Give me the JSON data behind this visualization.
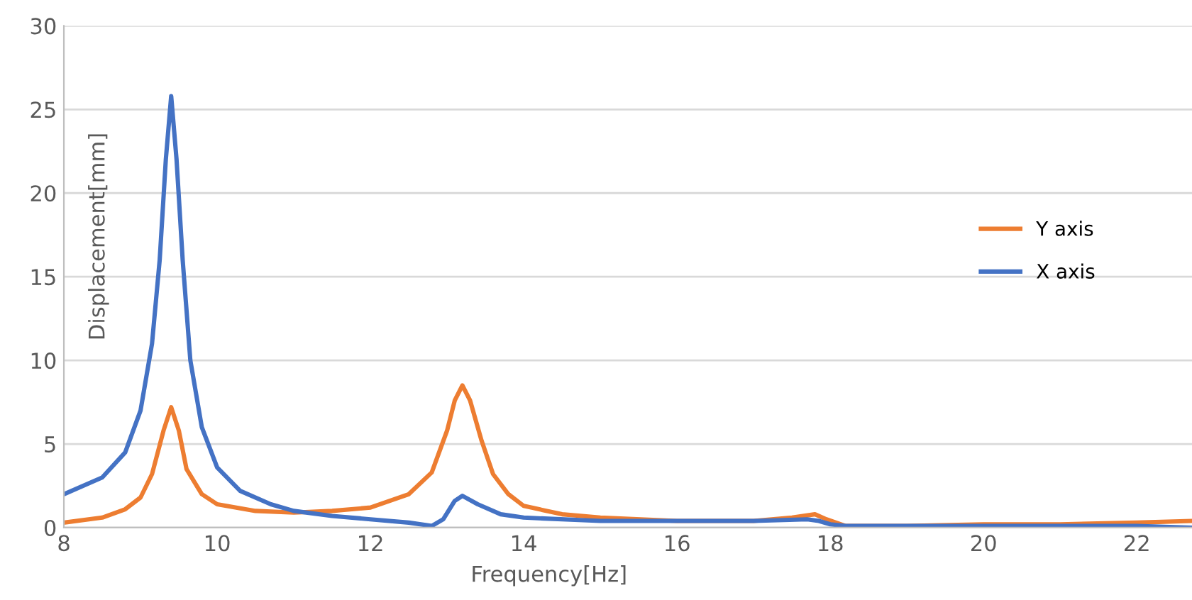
{
  "chart_data": {
    "type": "line",
    "xlabel": "Frequency[Hz]",
    "ylabel": "Displacement[mm]",
    "xlim": [
      8,
      22.72
    ],
    "xticks": [
      8,
      10,
      12,
      14,
      16,
      18,
      20,
      22
    ],
    "ylim": [
      0,
      30
    ],
    "yticks": [
      0,
      5,
      10,
      15,
      20,
      25,
      30
    ],
    "grid": "y",
    "legend": "right",
    "marker": "none",
    "line_style": "solid",
    "series": [
      {
        "name": "Y axis",
        "color": "#ed7d31",
        "x": [
          8,
          8.5,
          8.8,
          9.0,
          9.15,
          9.3,
          9.4,
          9.5,
          9.6,
          9.8,
          10,
          10.5,
          11,
          11.5,
          12,
          12.5,
          12.8,
          13.0,
          13.1,
          13.2,
          13.3,
          13.45,
          13.6,
          13.8,
          14,
          14.5,
          15,
          16,
          17,
          17.5,
          17.8,
          17.95,
          18.2,
          19,
          20,
          21,
          22,
          22.7
        ],
        "values": [
          0.3,
          0.6,
          1.1,
          1.8,
          3.2,
          5.8,
          7.2,
          5.8,
          3.5,
          2.0,
          1.4,
          1.0,
          0.9,
          1.0,
          1.2,
          2.0,
          3.3,
          5.8,
          7.6,
          8.5,
          7.6,
          5.2,
          3.2,
          2.0,
          1.3,
          0.8,
          0.6,
          0.4,
          0.4,
          0.6,
          0.8,
          0.5,
          0.1,
          0.1,
          0.2,
          0.2,
          0.3,
          0.4
        ]
      },
      {
        "name": "X axis",
        "color": "#4472c4",
        "x": [
          8,
          8.5,
          8.8,
          9.0,
          9.15,
          9.25,
          9.33,
          9.4,
          9.47,
          9.55,
          9.65,
          9.8,
          10,
          10.3,
          10.7,
          11,
          11.5,
          12,
          12.5,
          12.8,
          12.95,
          13.1,
          13.2,
          13.4,
          13.7,
          14,
          15,
          16,
          17,
          17.7,
          17.85,
          18.0,
          18.2,
          19,
          20,
          21,
          22,
          22.7
        ],
        "values": [
          2.0,
          3.0,
          4.5,
          7,
          11,
          16,
          22,
          25.8,
          22,
          16,
          10,
          6,
          3.6,
          2.2,
          1.4,
          1.0,
          0.7,
          0.5,
          0.3,
          0.1,
          0.5,
          1.6,
          1.9,
          1.4,
          0.8,
          0.6,
          0.4,
          0.4,
          0.4,
          0.5,
          0.4,
          0.2,
          0.1,
          0.1,
          0.1,
          0.1,
          0.1,
          0
        ]
      }
    ]
  }
}
